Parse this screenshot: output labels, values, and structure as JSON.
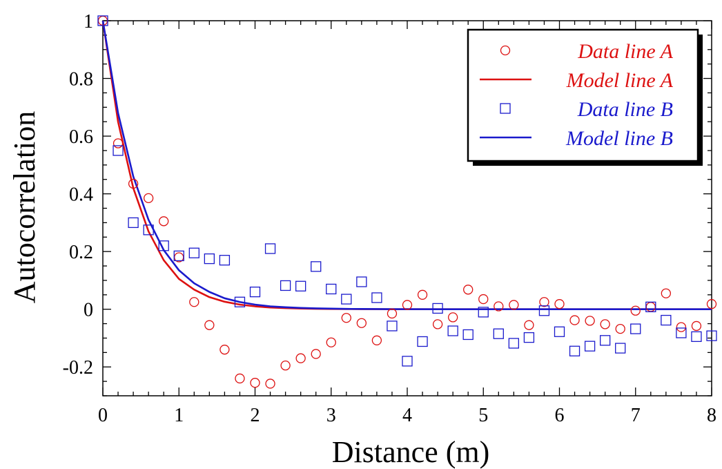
{
  "chart_data": {
    "type": "scatter",
    "title": "",
    "xlabel": "Distance (m)",
    "ylabel": "Autocorrelation",
    "xlim": [
      0,
      8
    ],
    "ylim": [
      -0.3,
      1.0
    ],
    "xticks": [
      0,
      1,
      2,
      3,
      4,
      5,
      6,
      7,
      8
    ],
    "xtick_labels": [
      "0",
      "1",
      "2",
      "3",
      "4",
      "5",
      "6",
      "7",
      "8"
    ],
    "yticks": [
      -0.2,
      0,
      0.2,
      0.4,
      0.6,
      0.8,
      1
    ],
    "ytick_labels": [
      "-0.2",
      "0",
      "0.2",
      "0.4",
      "0.6",
      "0.8",
      "1"
    ],
    "grid": false,
    "legend_position": "top-right",
    "series": [
      {
        "name": "Data line A",
        "kind": "points",
        "marker": "circle",
        "color": "#dd1111",
        "x": [
          0,
          0.2,
          0.4,
          0.6,
          0.8,
          1.0,
          1.2,
          1.4,
          1.6,
          1.8,
          2.0,
          2.2,
          2.4,
          2.6,
          2.8,
          3.0,
          3.2,
          3.4,
          3.6,
          3.8,
          4.0,
          4.2,
          4.4,
          4.6,
          4.8,
          5.0,
          5.2,
          5.4,
          5.6,
          5.8,
          6.0,
          6.2,
          6.4,
          6.6,
          6.8,
          7.0,
          7.2,
          7.4,
          7.6,
          7.8,
          8.0
        ],
        "y": [
          1.0,
          0.575,
          0.435,
          0.385,
          0.305,
          0.18,
          0.025,
          -0.055,
          -0.14,
          -0.24,
          -0.255,
          -0.258,
          -0.195,
          -0.17,
          -0.155,
          -0.115,
          -0.03,
          -0.048,
          -0.108,
          -0.015,
          0.015,
          0.05,
          -0.052,
          -0.028,
          0.068,
          0.035,
          0.01,
          0.015,
          -0.055,
          0.025,
          0.018,
          -0.038,
          -0.04,
          -0.052,
          -0.068,
          -0.005,
          0.008,
          0.055,
          -0.062,
          -0.058,
          0.018
        ]
      },
      {
        "name": "Model line A",
        "kind": "line",
        "color": "#dd1111",
        "x": [
          0,
          0.2,
          0.4,
          0.6,
          0.8,
          1.0,
          1.2,
          1.4,
          1.6,
          1.8,
          2.0,
          2.2,
          2.4,
          2.6,
          2.8,
          3.0,
          3.2,
          3.4,
          3.6,
          3.8,
          4.0,
          4.5,
          5.0,
          5.5,
          6.0,
          6.5,
          7.0,
          7.5,
          8.0
        ],
        "y": [
          1.0,
          0.65,
          0.42,
          0.27,
          0.17,
          0.105,
          0.068,
          0.042,
          0.026,
          0.016,
          0.01,
          0.006,
          0.004,
          0.0025,
          0.0015,
          0.001,
          0.0006,
          0.0004,
          0.0002,
          0.0001,
          0.0,
          0.0,
          0.0,
          0.0,
          0.0,
          0.0,
          0.0,
          0.0,
          0.0
        ]
      },
      {
        "name": "Data line B",
        "kind": "points",
        "marker": "square",
        "color": "#1a1acc",
        "x": [
          0,
          0.2,
          0.4,
          0.6,
          0.8,
          1.0,
          1.2,
          1.4,
          1.6,
          1.8,
          2.0,
          2.2,
          2.4,
          2.6,
          2.8,
          3.0,
          3.2,
          3.4,
          3.6,
          3.8,
          4.0,
          4.2,
          4.4,
          4.6,
          4.8,
          5.0,
          5.2,
          5.4,
          5.6,
          5.8,
          6.0,
          6.2,
          6.4,
          6.6,
          6.8,
          7.0,
          7.2,
          7.4,
          7.6,
          7.8,
          8.0
        ],
        "y": [
          1.0,
          0.55,
          0.3,
          0.275,
          0.22,
          0.185,
          0.195,
          0.175,
          0.17,
          0.025,
          0.06,
          0.21,
          0.082,
          0.08,
          0.148,
          0.07,
          0.035,
          0.095,
          0.04,
          -0.058,
          -0.18,
          -0.112,
          0.003,
          -0.075,
          -0.088,
          -0.01,
          -0.085,
          -0.118,
          -0.098,
          -0.005,
          -0.078,
          -0.145,
          -0.128,
          -0.108,
          -0.135,
          -0.068,
          0.008,
          -0.038,
          -0.082,
          -0.095,
          -0.092
        ]
      },
      {
        "name": "Model line B",
        "kind": "line",
        "color": "#1a1acc",
        "x": [
          0,
          0.2,
          0.4,
          0.6,
          0.8,
          1.0,
          1.2,
          1.4,
          1.6,
          1.8,
          2.0,
          2.2,
          2.4,
          2.6,
          2.8,
          3.0,
          3.2,
          3.4,
          3.6,
          3.8,
          4.0,
          4.5,
          5.0,
          5.5,
          6.0,
          6.5,
          7.0,
          7.5,
          8.0
        ],
        "y": [
          1.0,
          0.68,
          0.46,
          0.31,
          0.205,
          0.135,
          0.09,
          0.06,
          0.038,
          0.025,
          0.016,
          0.01,
          0.007,
          0.0045,
          0.003,
          0.002,
          0.0012,
          0.0008,
          0.0005,
          0.0003,
          0.0002,
          0.0,
          0.0,
          0.0,
          0.0,
          0.0,
          0.0,
          0.0,
          0.0
        ]
      }
    ]
  }
}
